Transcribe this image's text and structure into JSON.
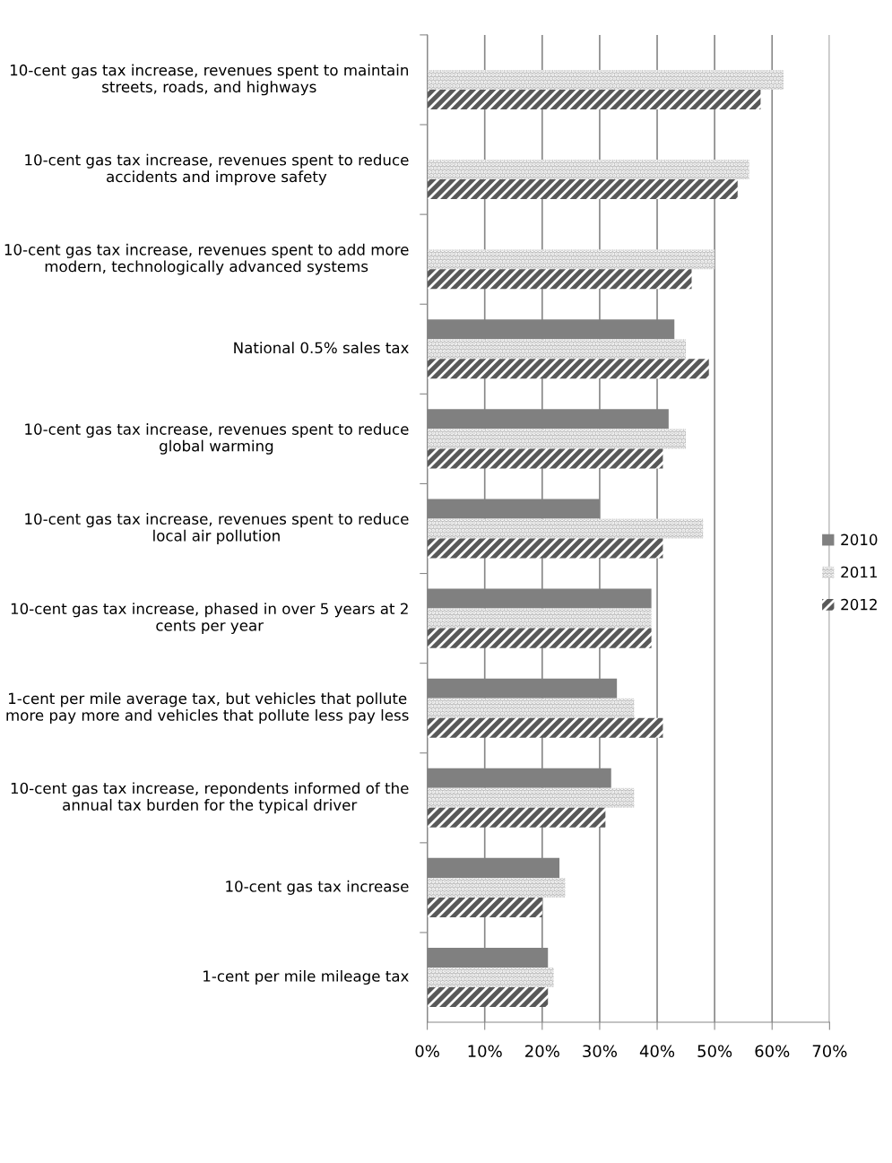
{
  "chart_data": {
    "type": "bar",
    "orientation": "horizontal",
    "categories": [
      "10-cent gas tax increase, revenues spent to maintain streets, roads, and highways",
      "10-cent gas tax increase, revenues spent to reduce accidents and improve safety",
      "10-cent gas tax increase, revenues spent to add more modern, technologically advanced systems",
      "National 0.5% sales tax",
      "10-cent gas tax increase, revenues spent to reduce global warming",
      "10-cent gas tax increase, revenues spent to reduce local air pollution",
      "10-cent gas tax increase, phased in over 5 years at 2 cents per year",
      "1-cent per mile average tax, but vehicles that pollute more pay more and vehicles that pollute less pay less",
      "10-cent gas tax increase, repondents informed of the annual tax burden for the typical driver",
      "10-cent gas tax increase",
      "1-cent per mile mileage tax"
    ],
    "series": [
      {
        "name": "2010",
        "color": "#808080",
        "values": [
          null,
          null,
          null,
          43,
          42,
          30,
          39,
          33,
          32,
          23,
          21
        ]
      },
      {
        "name": "2011",
        "color": "#bfbfbf",
        "values": [
          62,
          56,
          50,
          45,
          45,
          48,
          39,
          36,
          36,
          24,
          22
        ]
      },
      {
        "name": "2012",
        "color": "#595959",
        "values": [
          58,
          54,
          46,
          49,
          41,
          41,
          39,
          41,
          31,
          20,
          21
        ]
      }
    ],
    "xlim": [
      0,
      70
    ],
    "xticks": [
      {
        "value": 0,
        "label": "0%"
      },
      {
        "value": 10,
        "label": "10%"
      },
      {
        "value": 20,
        "label": "20%"
      },
      {
        "value": 30,
        "label": "30%"
      },
      {
        "value": 40,
        "label": "40%"
      },
      {
        "value": 50,
        "label": "50%"
      },
      {
        "value": 60,
        "label": "60%"
      },
      {
        "value": 70,
        "label": "70%"
      }
    ],
    "grid": "x",
    "legend": "right"
  }
}
